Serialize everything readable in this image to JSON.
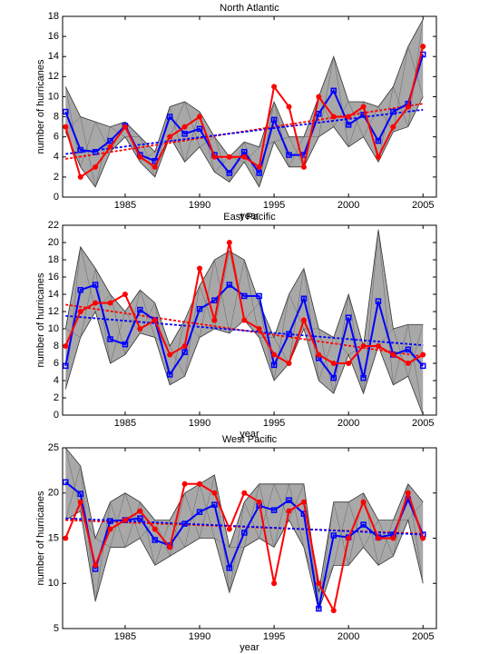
{
  "chart_data": [
    {
      "type": "line",
      "title": "North Atlantic",
      "xlabel": "year",
      "ylabel": "number of hurricanes",
      "x": [
        1981,
        1982,
        1983,
        1984,
        1985,
        1986,
        1987,
        1988,
        1989,
        1990,
        1991,
        1992,
        1993,
        1994,
        1995,
        1996,
        1997,
        1998,
        1999,
        2000,
        2001,
        2002,
        2003,
        2004,
        2005
      ],
      "xlim": [
        1980.8,
        2005.9
      ],
      "xticks": [
        1985,
        1990,
        1995,
        2000,
        2005
      ],
      "ylim": [
        0,
        18
      ],
      "yticks": [
        0,
        2,
        4,
        6,
        8,
        10,
        12,
        14,
        16,
        18
      ],
      "series": [
        {
          "kind": "band",
          "color": "#a8a8a8",
          "upper": [
            11,
            8,
            7.5,
            7,
            7.5,
            6,
            4.5,
            9,
            9.5,
            8.5,
            6,
            4,
            5.5,
            5,
            9.5,
            6,
            6,
            10,
            14,
            9.5,
            9.5,
            9,
            11,
            15,
            17.7
          ],
          "lower": [
            6.5,
            3,
            1,
            4.5,
            6,
            3.5,
            2,
            6,
            3.5,
            5,
            2.5,
            1.5,
            3.5,
            1,
            5.5,
            3,
            3,
            6,
            7,
            5,
            6,
            3.5,
            6.5,
            7,
            10
          ]
        },
        {
          "kind": "trend",
          "color": "#ff0000",
          "x": [
            1981,
            2005
          ],
          "values": [
            3.8,
            9.3
          ]
        },
        {
          "kind": "trend",
          "color": "#0000ff",
          "x": [
            1981,
            2005
          ],
          "values": [
            4.3,
            8.7
          ]
        },
        {
          "kind": "line",
          "marker": "square",
          "color": "#0000ff",
          "values": [
            8.5,
            4.7,
            4.5,
            5.6,
            7.1,
            4.2,
            3.6,
            8.0,
            6.3,
            6.8,
            4.2,
            2.4,
            4.5,
            2.4,
            7.7,
            4.2,
            4.2,
            8.3,
            10.6,
            7.2,
            8.2,
            5.6,
            8.5,
            9.3,
            14.2
          ]
        },
        {
          "kind": "line",
          "marker": "circle",
          "color": "#ff0000",
          "values": [
            7,
            2,
            3,
            5,
            7,
            4,
            3,
            6,
            7,
            8,
            4,
            4,
            4,
            3,
            11,
            9,
            3,
            10,
            8,
            8,
            9,
            4,
            7,
            9,
            15
          ]
        }
      ]
    },
    {
      "type": "line",
      "title": "East Pacific",
      "xlabel": "year",
      "ylabel": "number of hurricanes",
      "x": [
        1981,
        1982,
        1983,
        1984,
        1985,
        1986,
        1987,
        1988,
        1989,
        1990,
        1991,
        1992,
        1993,
        1994,
        1995,
        1996,
        1997,
        1998,
        1999,
        2000,
        2001,
        2002,
        2003,
        2004,
        2005
      ],
      "xlim": [
        1980.8,
        2005.9
      ],
      "xticks": [
        1985,
        1990,
        1995,
        2000,
        2005
      ],
      "ylim": [
        0,
        22
      ],
      "yticks": [
        0,
        2,
        4,
        6,
        8,
        10,
        12,
        14,
        16,
        18,
        20,
        22
      ],
      "series": [
        {
          "kind": "band",
          "color": "#a8a8a8",
          "upper": [
            10,
            19.5,
            17,
            14,
            12,
            14.5,
            13,
            8,
            11,
            15,
            18,
            19,
            18,
            13,
            9,
            14,
            17,
            10,
            9,
            14,
            8,
            21.5,
            10,
            10.5,
            10.5
          ],
          "lower": [
            3,
            9,
            12,
            6,
            7,
            9.5,
            9,
            3.5,
            4.5,
            9,
            10,
            9.5,
            11,
            9,
            4,
            6,
            10,
            4,
            2.5,
            7,
            2.5,
            8,
            3.5,
            4.5,
            0
          ]
        },
        {
          "kind": "trend",
          "color": "#ff0000",
          "x": [
            1981,
            2005
          ],
          "values": [
            12.8,
            6.8
          ]
        },
        {
          "kind": "trend",
          "color": "#0000ff",
          "x": [
            1981,
            2005
          ],
          "values": [
            11.5,
            8.1
          ]
        },
        {
          "kind": "line",
          "marker": "square",
          "color": "#0000ff",
          "values": [
            5.7,
            14.5,
            15.1,
            8.8,
            8.2,
            12.2,
            11.0,
            4.7,
            7.3,
            12.3,
            13.3,
            15.1,
            13.8,
            13.8,
            5.8,
            9.4,
            13.5,
            6.6,
            4.3,
            11.3,
            4.3,
            13.2,
            7.0,
            7.6,
            5.7
          ]
        },
        {
          "kind": "line",
          "marker": "circle",
          "color": "#ff0000",
          "values": [
            8,
            12,
            13,
            13,
            14,
            10,
            11,
            7,
            8,
            17,
            11,
            20,
            11,
            10,
            7,
            6,
            11,
            7,
            6,
            6,
            8,
            8,
            7,
            6,
            7
          ]
        }
      ]
    },
    {
      "type": "line",
      "title": "West Pacific",
      "xlabel": "year",
      "ylabel": "number of hurricanes",
      "x": [
        1981,
        1982,
        1983,
        1984,
        1985,
        1986,
        1987,
        1988,
        1989,
        1990,
        1991,
        1992,
        1993,
        1994,
        1995,
        1996,
        1997,
        1998,
        1999,
        2000,
        2001,
        2002,
        2003,
        2004,
        2005
      ],
      "xlim": [
        1980.8,
        2005.9
      ],
      "xticks": [
        1985,
        1990,
        1995,
        2000,
        2005
      ],
      "ylim": [
        5,
        25
      ],
      "yticks": [
        5,
        10,
        15,
        20,
        25
      ],
      "series": [
        {
          "kind": "band",
          "color": "#a8a8a8",
          "upper": [
            25,
            23,
            15,
            19,
            20,
            19,
            17,
            17,
            20,
            21,
            22,
            14,
            19,
            21,
            21,
            21,
            21,
            9,
            19,
            19,
            20,
            17,
            17,
            21,
            19
          ],
          "lower": [
            17,
            18,
            8,
            14,
            14,
            15,
            12,
            13,
            14,
            15,
            15,
            9,
            14,
            15,
            14,
            17,
            14,
            7,
            12,
            12,
            14,
            12,
            13,
            17,
            10
          ]
        },
        {
          "kind": "trend",
          "color": "#ff0000",
          "x": [
            1981,
            2005
          ],
          "values": [
            17.0,
            15.5
          ]
        },
        {
          "kind": "trend",
          "color": "#0000ff",
          "x": [
            1981,
            2005
          ],
          "values": [
            17.2,
            15.4
          ]
        },
        {
          "kind": "line",
          "marker": "square",
          "color": "#0000ff",
          "values": [
            21.2,
            19.9,
            11.6,
            16.9,
            17,
            17.2,
            14.8,
            14.2,
            16.6,
            17.9,
            18.7,
            11.7,
            15.6,
            18.6,
            18.1,
            19.2,
            17.7,
            7.2,
            15.3,
            15.1,
            16.5,
            15.1,
            15.4,
            19.3,
            15.4
          ]
        },
        {
          "kind": "line",
          "marker": "circle",
          "color": "#ff0000",
          "values": [
            15,
            19,
            12,
            16,
            17,
            18,
            16,
            14,
            21,
            21,
            20,
            16,
            20,
            19,
            10,
            18,
            19,
            10,
            7,
            15,
            19,
            15,
            15,
            20,
            15
          ]
        }
      ]
    }
  ]
}
